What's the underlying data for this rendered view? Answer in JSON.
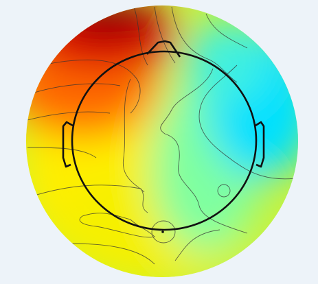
{
  "figure": {
    "background": "#edf3f9",
    "colormap": [
      "#8b0000",
      "#ff0000",
      "#ff8c00",
      "#ffff00",
      "#7fff7f",
      "#00e5ff"
    ],
    "outline_color": "#111111",
    "contour_color": "#333333",
    "head_features": [
      "head-outline",
      "nose",
      "left-ear",
      "right-ear"
    ],
    "sensor_markers": 1
  }
}
